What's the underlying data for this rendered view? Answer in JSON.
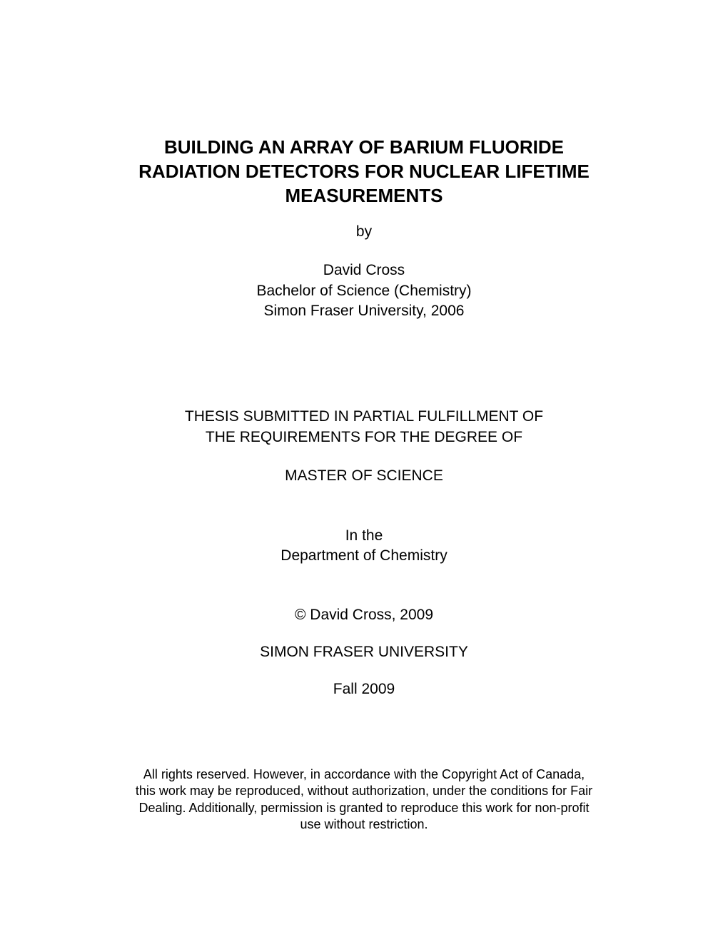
{
  "title": {
    "line1": "BUILDING AN ARRAY OF BARIUM FLUORIDE",
    "line2": "RADIATION DETECTORS FOR NUCLEAR LIFETIME",
    "line3": "MEASUREMENTS"
  },
  "by": "by",
  "author": {
    "name": "David Cross",
    "degree": "Bachelor of Science (Chemistry)",
    "prior_institution": "Simon Fraser University, 2006"
  },
  "submission": {
    "line1": "THESIS SUBMITTED IN PARTIAL FULFILLMENT OF",
    "line2": "THE REQUIREMENTS FOR THE DEGREE OF"
  },
  "degree_sought": "MASTER OF SCIENCE",
  "department": {
    "line1": "In the",
    "line2": "Department of Chemistry"
  },
  "copyright": "© David Cross, 2009",
  "university": "SIMON FRASER UNIVERSITY",
  "term": "Fall 2009",
  "rights": {
    "line1": "All rights reserved. However, in accordance with the Copyright Act of Canada,",
    "line2": "this work may be reproduced, without authorization, under the conditions for Fair",
    "line3": "Dealing. Additionally, permission is granted to reproduce this work for non-profit",
    "line4": "use without restriction."
  }
}
